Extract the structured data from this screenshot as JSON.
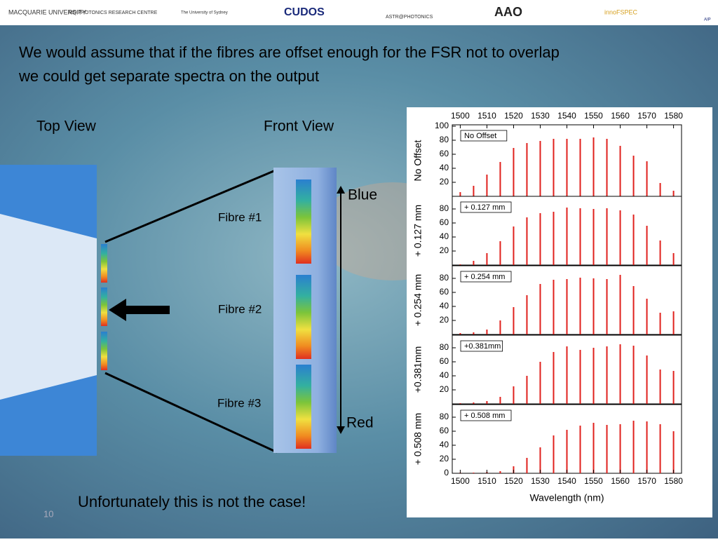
{
  "header": {
    "logos": [
      "MACQUARIE UNIVERSITY",
      "MQ PHOTONICS RESEARCH CENTRE",
      "The University of Sydney",
      "CUDOS",
      "ASTR@PHOTONICS",
      "AAO",
      "innoFSPEC",
      "AIP"
    ]
  },
  "headline": [
    "We would assume that if the fibres are offset enough for the FSR not to overlap",
    "we could get separate spectra on the output"
  ],
  "diagram": {
    "top_view": "Top View",
    "front_view": "Front View",
    "fibres": [
      "Fibre #1",
      "Fibre #2",
      "Fibre #3"
    ],
    "blue": "Blue",
    "red": "Red"
  },
  "footer": {
    "note": "Unfortunately this is not the case!",
    "page": "10"
  },
  "chart_data": [
    {
      "type": "bar",
      "ylabel": "No Offset",
      "annotation": "No Offset",
      "color": "#e0201c",
      "x": [
        1500,
        1505,
        1510,
        1515,
        1520,
        1525,
        1530,
        1535,
        1540,
        1545,
        1550,
        1555,
        1560,
        1565,
        1570,
        1575,
        1580
      ],
      "values": [
        6,
        15,
        31,
        49,
        69,
        76,
        79,
        82,
        82,
        82,
        84,
        82,
        72,
        58,
        50,
        19,
        8
      ],
      "xlim": [
        1497,
        1583
      ],
      "ylim": [
        0,
        100
      ],
      "yticks": [
        20,
        40,
        60,
        80,
        100
      ],
      "xticks": [
        1500,
        1510,
        1520,
        1530,
        1540,
        1550,
        1560,
        1570,
        1580
      ]
    },
    {
      "type": "bar",
      "ylabel": "+ 0.127 mm",
      "annotation": "+ 0.127 mm",
      "color": "#e0201c",
      "x": [
        1500,
        1505,
        1510,
        1515,
        1520,
        1525,
        1530,
        1535,
        1540,
        1545,
        1550,
        1555,
        1560,
        1565,
        1570,
        1575,
        1580
      ],
      "values": [
        1,
        6,
        17,
        34,
        55,
        68,
        74,
        76,
        82,
        81,
        80,
        81,
        78,
        72,
        56,
        35,
        17
      ],
      "xlim": [
        1497,
        1583
      ],
      "ylim": [
        0,
        100
      ],
      "yticks": [
        20,
        40,
        60,
        80
      ]
    },
    {
      "type": "bar",
      "ylabel": "+ 0.254 mm",
      "annotation": "+ 0.254 mm",
      "color": "#e0201c",
      "x": [
        1500,
        1505,
        1510,
        1515,
        1520,
        1525,
        1530,
        1535,
        1540,
        1545,
        1550,
        1555,
        1560,
        1565,
        1570,
        1575,
        1580
      ],
      "values": [
        2,
        3,
        7,
        20,
        39,
        56,
        72,
        78,
        79,
        81,
        80,
        79,
        85,
        69,
        51,
        31,
        33
      ],
      "xlim": [
        1497,
        1583
      ],
      "ylim": [
        0,
        100
      ],
      "yticks": [
        20,
        40,
        60,
        80
      ]
    },
    {
      "type": "bar",
      "ylabel": "+0.381mm",
      "annotation": "+0.381mm",
      "color": "#e0201c",
      "x": [
        1500,
        1505,
        1510,
        1515,
        1520,
        1525,
        1530,
        1535,
        1540,
        1545,
        1550,
        1555,
        1560,
        1565,
        1570,
        1575,
        1580
      ],
      "values": [
        1,
        2,
        4,
        10,
        25,
        40,
        60,
        74,
        82,
        77,
        80,
        82,
        85,
        83,
        69,
        49,
        47
      ],
      "xlim": [
        1497,
        1583
      ],
      "ylim": [
        0,
        100
      ],
      "yticks": [
        20,
        40,
        60,
        80
      ]
    },
    {
      "type": "bar",
      "ylabel": "+ 0.508 mm",
      "annotation": "+ 0.508 mm",
      "color": "#e0201c",
      "xlabel": "Wavelength (nm)",
      "x": [
        1500,
        1505,
        1510,
        1515,
        1520,
        1525,
        1530,
        1535,
        1540,
        1545,
        1550,
        1555,
        1560,
        1565,
        1570,
        1575,
        1580
      ],
      "values": [
        1,
        1,
        2,
        3,
        10,
        22,
        37,
        54,
        62,
        68,
        72,
        69,
        70,
        75,
        74,
        70,
        60
      ],
      "xlim": [
        1497,
        1583
      ],
      "ylim": [
        0,
        100
      ],
      "yticks": [
        0,
        20,
        40,
        60,
        80
      ],
      "xticks": [
        1500,
        1510,
        1520,
        1530,
        1540,
        1550,
        1560,
        1570,
        1580
      ]
    }
  ]
}
